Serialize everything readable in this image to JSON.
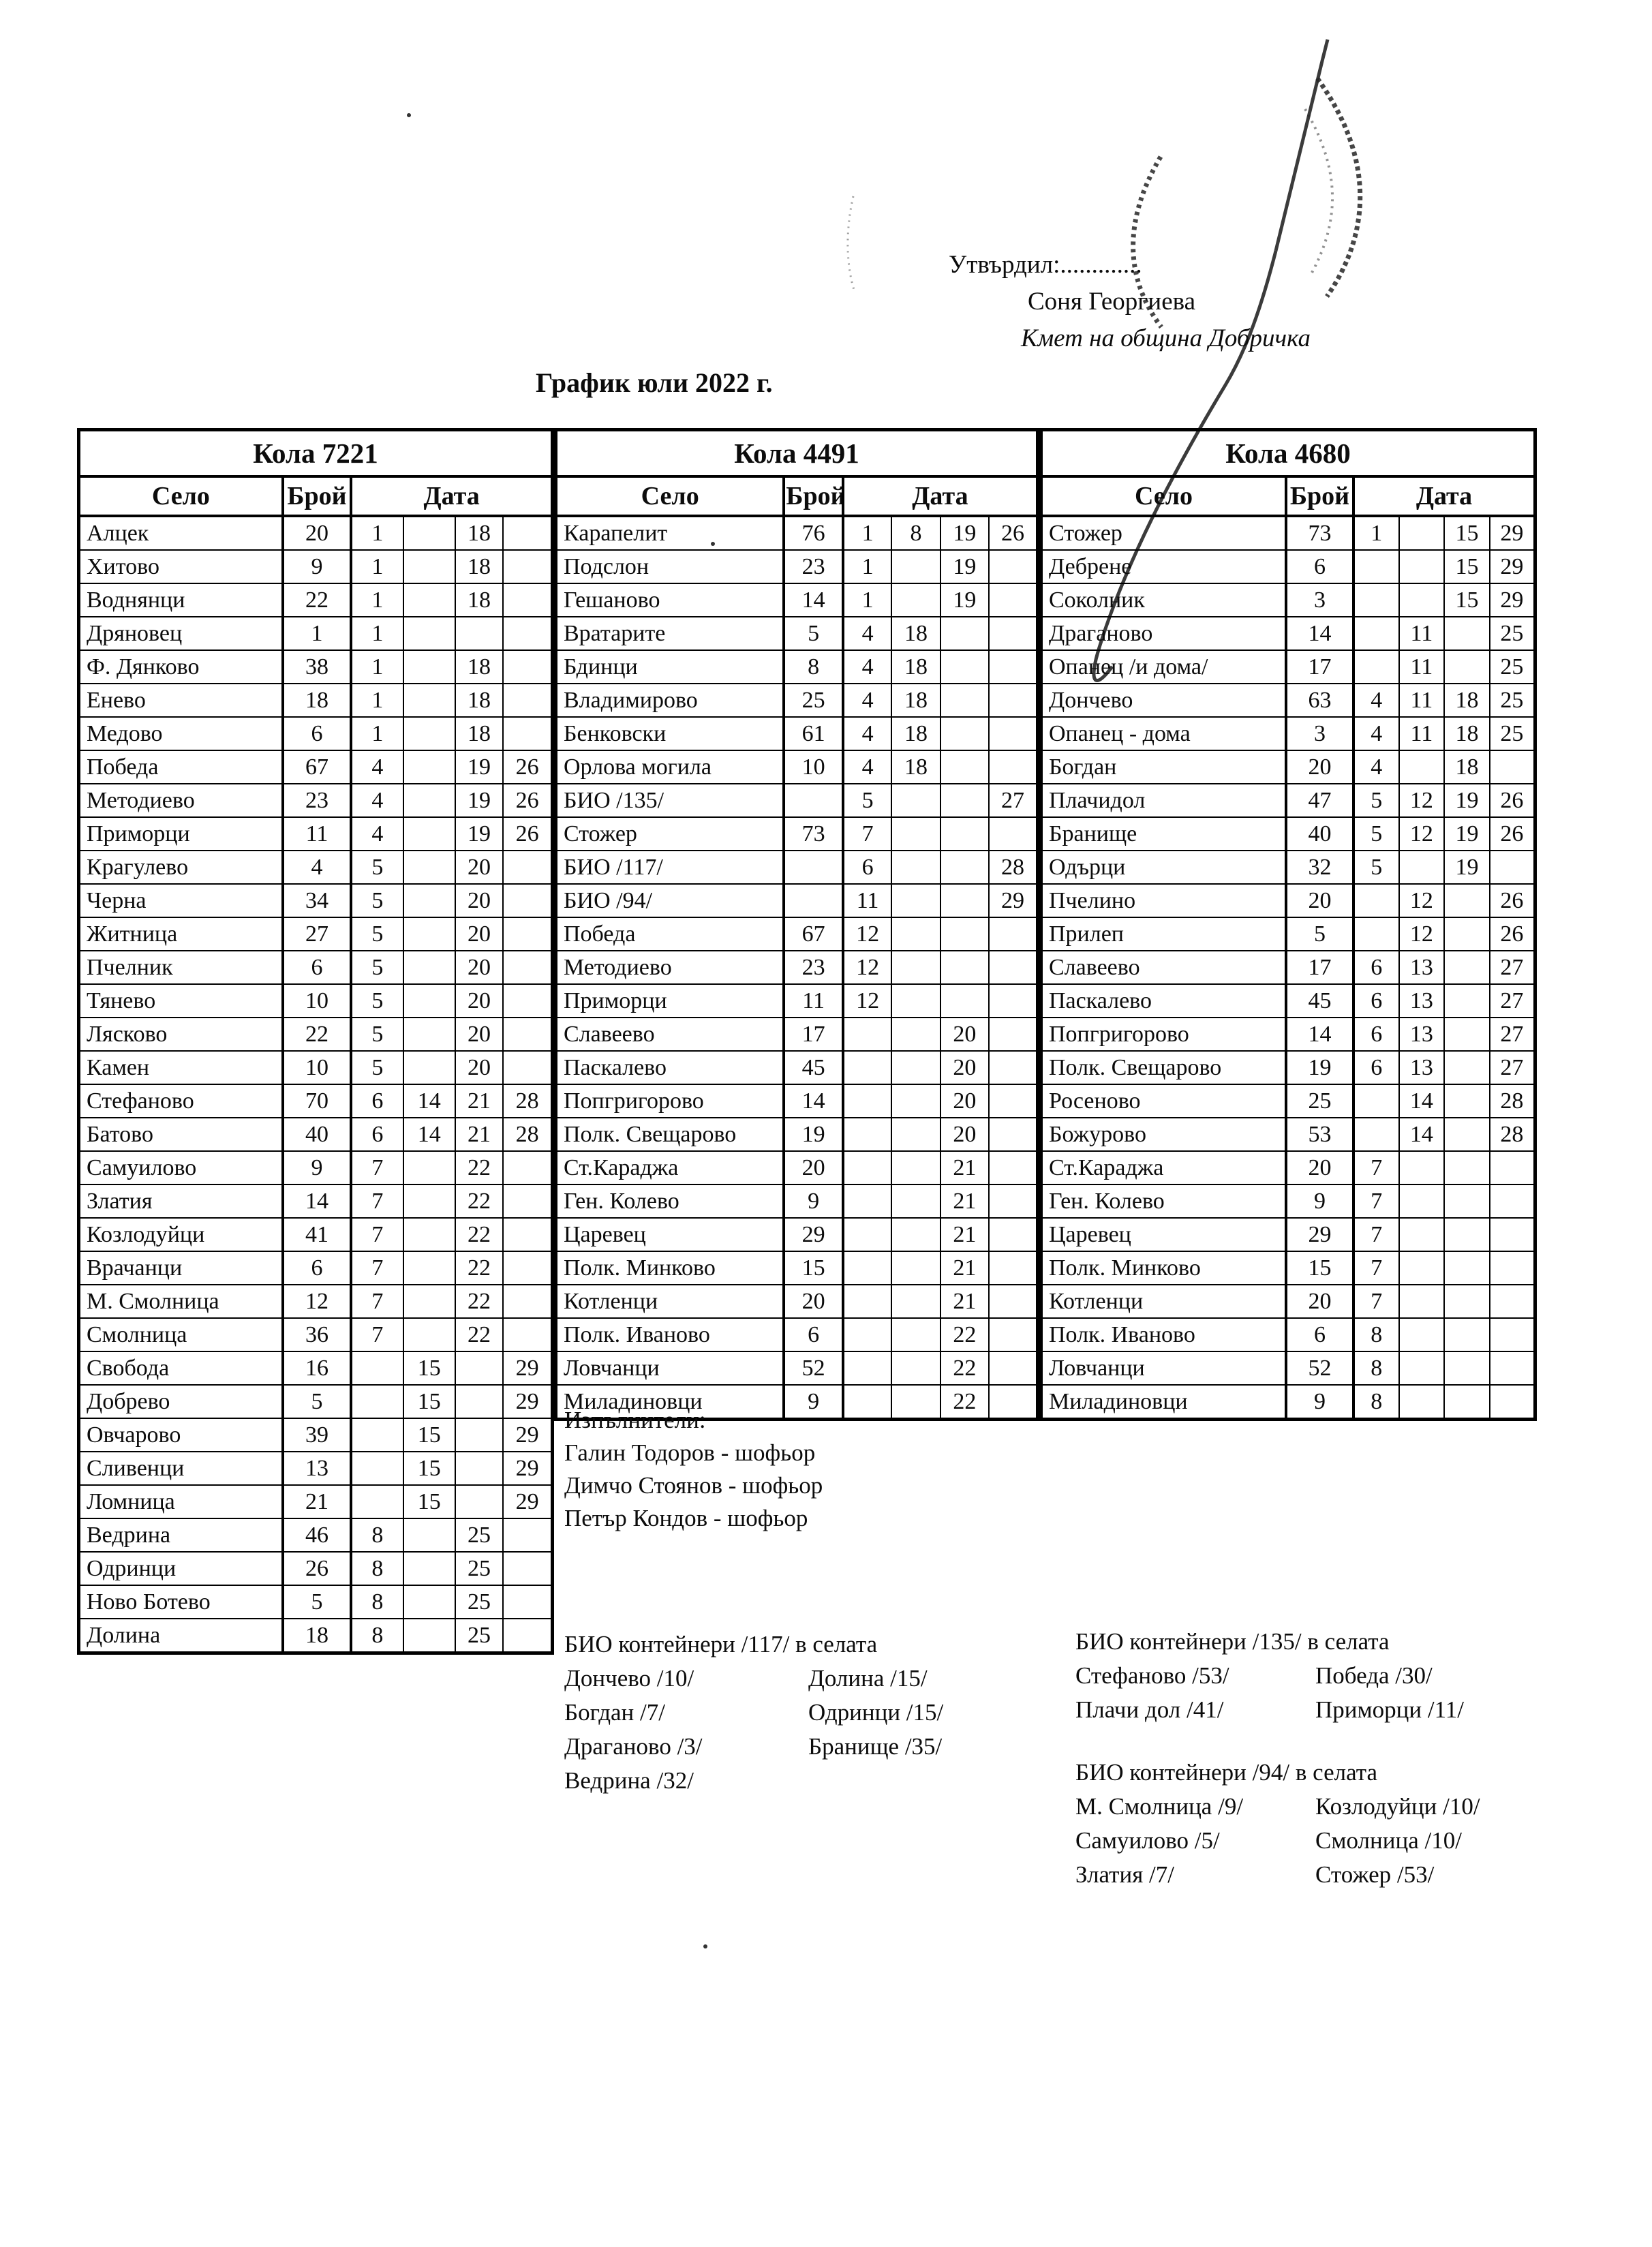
{
  "approval": {
    "label": "Утвърдил:.............",
    "name": "Соня Георгиева",
    "role": "Кмет  на община Добричка"
  },
  "title": "График юли 2022 г.",
  "tables": [
    {
      "vehicle": "Кола 7221",
      "headers": {
        "village": "Село",
        "count": "Брой",
        "date": "Дата"
      },
      "rows": [
        [
          "Алцек",
          "20",
          "1",
          "",
          "18",
          ""
        ],
        [
          "Хитово",
          "9",
          "1",
          "",
          "18",
          ""
        ],
        [
          "Воднянци",
          "22",
          "1",
          "",
          "18",
          ""
        ],
        [
          "Дряновец",
          "1",
          "1",
          "",
          "",
          ""
        ],
        [
          "Ф. Дянково",
          "38",
          "1",
          "",
          "18",
          ""
        ],
        [
          "Енево",
          "18",
          "1",
          "",
          "18",
          ""
        ],
        [
          "Медово",
          "6",
          "1",
          "",
          "18",
          ""
        ],
        [
          "Победа",
          "67",
          "4",
          "",
          "19",
          "26"
        ],
        [
          "Методиево",
          "23",
          "4",
          "",
          "19",
          "26"
        ],
        [
          "Приморци",
          "11",
          "4",
          "",
          "19",
          "26"
        ],
        [
          "Крагулево",
          "4",
          "5",
          "",
          "20",
          ""
        ],
        [
          "Черна",
          "34",
          "5",
          "",
          "20",
          ""
        ],
        [
          "Житница",
          "27",
          "5",
          "",
          "20",
          ""
        ],
        [
          "Пчелник",
          "6",
          "5",
          "",
          "20",
          ""
        ],
        [
          "Тянево",
          "10",
          "5",
          "",
          "20",
          ""
        ],
        [
          "Лясково",
          "22",
          "5",
          "",
          "20",
          ""
        ],
        [
          "Камен",
          "10",
          "5",
          "",
          "20",
          ""
        ],
        [
          "Стефаново",
          "70",
          "6",
          "14",
          "21",
          "28"
        ],
        [
          "Батово",
          "40",
          "6",
          "14",
          "21",
          "28"
        ],
        [
          "Самуилово",
          "9",
          "7",
          "",
          "22",
          ""
        ],
        [
          "Златия",
          "14",
          "7",
          "",
          "22",
          ""
        ],
        [
          "Козлодуйци",
          "41",
          "7",
          "",
          "22",
          ""
        ],
        [
          "Врачанци",
          "6",
          "7",
          "",
          "22",
          ""
        ],
        [
          "М. Смолница",
          "12",
          "7",
          "",
          "22",
          ""
        ],
        [
          "Смолница",
          "36",
          "7",
          "",
          "22",
          ""
        ],
        [
          "Свобода",
          "16",
          "",
          "15",
          "",
          "29"
        ],
        [
          "Добрево",
          "5",
          "",
          "15",
          "",
          "29"
        ],
        [
          "Овчарово",
          "39",
          "",
          "15",
          "",
          "29"
        ],
        [
          "Сливенци",
          "13",
          "",
          "15",
          "",
          "29"
        ],
        [
          "Ломница",
          "21",
          "",
          "15",
          "",
          "29"
        ],
        [
          "Ведрина",
          "46",
          "8",
          "",
          "25",
          ""
        ],
        [
          "Одринци",
          "26",
          "8",
          "",
          "25",
          ""
        ],
        [
          "Ново Ботево",
          "5",
          "8",
          "",
          "25",
          ""
        ],
        [
          "Долина",
          "18",
          "8",
          "",
          "25",
          ""
        ]
      ]
    },
    {
      "vehicle": "Кола 4491",
      "headers": {
        "village": "Село",
        "count": "Брой",
        "date": "Дата"
      },
      "rows": [
        [
          "Карапелит",
          "76",
          "1",
          "8",
          "19",
          "26"
        ],
        [
          "Подслон",
          "23",
          "1",
          "",
          "19",
          ""
        ],
        [
          "Гешаново",
          "14",
          "1",
          "",
          "19",
          ""
        ],
        [
          "Вратарите",
          "5",
          "4",
          "18",
          "",
          ""
        ],
        [
          "Бдинци",
          "8",
          "4",
          "18",
          "",
          ""
        ],
        [
          "Владимирово",
          "25",
          "4",
          "18",
          "",
          ""
        ],
        [
          "Бенковски",
          "61",
          "4",
          "18",
          "",
          ""
        ],
        [
          "Орлова могила",
          "10",
          "4",
          "18",
          "",
          ""
        ],
        [
          "БИО /135/",
          "",
          "5",
          "",
          "",
          "27"
        ],
        [
          "Стожер",
          "73",
          "7",
          "",
          "",
          ""
        ],
        [
          "БИО /117/",
          "",
          "6",
          "",
          "",
          "28"
        ],
        [
          "БИО /94/",
          "",
          "11",
          "",
          "",
          "29"
        ],
        [
          "Победа",
          "67",
          "12",
          "",
          "",
          ""
        ],
        [
          "Методиево",
          "23",
          "12",
          "",
          "",
          ""
        ],
        [
          "Приморци",
          "11",
          "12",
          "",
          "",
          ""
        ],
        [
          "Славеево",
          "17",
          "",
          "",
          "20",
          ""
        ],
        [
          "Паскалево",
          "45",
          "",
          "",
          "20",
          ""
        ],
        [
          "Попгригорово",
          "14",
          "",
          "",
          "20",
          ""
        ],
        [
          "Полк. Свещарово",
          "19",
          "",
          "",
          "20",
          ""
        ],
        [
          "Ст.Караджа",
          "20",
          "",
          "",
          "21",
          ""
        ],
        [
          "Ген. Колево",
          "9",
          "",
          "",
          "21",
          ""
        ],
        [
          "Царевец",
          "29",
          "",
          "",
          "21",
          ""
        ],
        [
          "Полк. Минково",
          "15",
          "",
          "",
          "21",
          ""
        ],
        [
          "Котленци",
          "20",
          "",
          "",
          "21",
          ""
        ],
        [
          "Полк. Иваново",
          "6",
          "",
          "",
          "22",
          ""
        ],
        [
          "Ловчанци",
          "52",
          "",
          "",
          "22",
          ""
        ],
        [
          "Миладиновци",
          "9",
          "",
          "",
          "22",
          ""
        ]
      ]
    },
    {
      "vehicle": "Кола 4680",
      "headers": {
        "village": "Село",
        "count": "Брой",
        "date": "Дата"
      },
      "rows": [
        [
          "Стожер",
          "73",
          "1",
          "",
          "15",
          "29"
        ],
        [
          "Дебрене",
          "6",
          "",
          "",
          "15",
          "29"
        ],
        [
          "Соколник",
          "3",
          "",
          "",
          "15",
          "29"
        ],
        [
          "Драганово",
          "14",
          "",
          "11",
          "",
          "25"
        ],
        [
          "Опанец /и дома/",
          "17",
          "",
          "11",
          "",
          "25"
        ],
        [
          "Дончево",
          "63",
          "4",
          "11",
          "18",
          "25"
        ],
        [
          "Опанец - дома",
          "3",
          "4",
          "11",
          "18",
          "25"
        ],
        [
          "Богдан",
          "20",
          "4",
          "",
          "18",
          ""
        ],
        [
          "Плачидол",
          "47",
          "5",
          "12",
          "19",
          "26"
        ],
        [
          "Бранище",
          "40",
          "5",
          "12",
          "19",
          "26"
        ],
        [
          "Одърци",
          "32",
          "5",
          "",
          "19",
          ""
        ],
        [
          "Пчелино",
          "20",
          "",
          "12",
          "",
          "26"
        ],
        [
          "Прилеп",
          "5",
          "",
          "12",
          "",
          "26"
        ],
        [
          "Славеево",
          "17",
          "6",
          "13",
          "",
          "27"
        ],
        [
          "Паскалево",
          "45",
          "6",
          "13",
          "",
          "27"
        ],
        [
          "Попгригорово",
          "14",
          "6",
          "13",
          "",
          "27"
        ],
        [
          "Полк. Свещарово",
          "19",
          "6",
          "13",
          "",
          "27"
        ],
        [
          "Росеново",
          "25",
          "",
          "14",
          "",
          "28"
        ],
        [
          "Божурово",
          "53",
          "",
          "14",
          "",
          "28"
        ],
        [
          "Ст.Караджа",
          "20",
          "7",
          "",
          "",
          ""
        ],
        [
          "Ген. Колево",
          "9",
          "7",
          "",
          "",
          ""
        ],
        [
          "Царевец",
          "29",
          "7",
          "",
          "",
          ""
        ],
        [
          "Полк. Минково",
          "15",
          "7",
          "",
          "",
          ""
        ],
        [
          "Котленци",
          "20",
          "7",
          "",
          "",
          ""
        ],
        [
          "Полк. Иваново",
          "6",
          "8",
          "",
          "",
          ""
        ],
        [
          "Ловчанци",
          "52",
          "8",
          "",
          "",
          ""
        ],
        [
          "Миладиновци",
          "9",
          "8",
          "",
          "",
          ""
        ]
      ]
    }
  ],
  "executors": {
    "heading": "Изпълнители:",
    "drivers": [
      "Галин Тодоров - шофьор",
      "Димчо Стоянов - шофьор",
      "Петър Кондов - шофьор"
    ]
  },
  "bio_sections": [
    {
      "heading": "БИО контейнери /117/ в селата",
      "left": [
        "Дончево /10/",
        "Богдан /7/",
        "Драганово /3/",
        "Ведрина /32/"
      ],
      "right": [
        "Долина /15/",
        "Одринци /15/",
        "Бранище /35/"
      ]
    },
    {
      "heading": "БИО контейнери /135/ в селата",
      "left": [
        "Стефаново /53/",
        "Плачи дол /41/"
      ],
      "right": [
        "Победа /30/",
        "Приморци /11/"
      ]
    },
    {
      "heading": "БИО контейнери /94/ в селата",
      "left": [
        "М. Смолница /9/",
        "Самуилово /5/",
        "Златия /7/"
      ],
      "right": [
        "Козлодуйци /10/",
        "Смолница /10/",
        "Стожер /53/"
      ]
    }
  ],
  "ink_color": "#1c1c1c"
}
